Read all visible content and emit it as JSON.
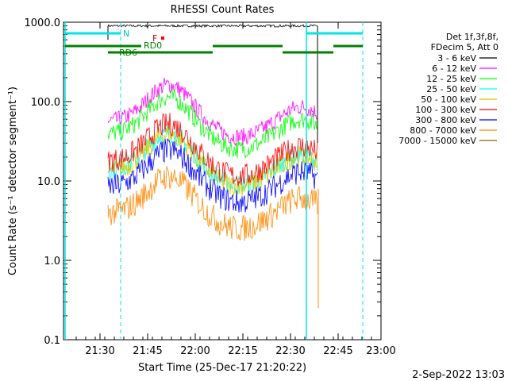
{
  "chart_data": {
    "type": "line",
    "title": "RHESSI Count Rates",
    "xlabel": "Start Time (25-Dec-17 21:20:22)",
    "ylabel": "Count Rate (s⁻¹ detector segment⁻¹)",
    "yscale": "log",
    "ylim": [
      0.1,
      1000
    ],
    "xlim_minutes": [
      21.3,
      23.0
    ],
    "x_ticks": [
      "21:30",
      "21:45",
      "22:00",
      "22:15",
      "22:30",
      "22:45",
      "23:00"
    ],
    "y_ticks": [
      "0.1",
      "1.0",
      "10.0",
      "100.0",
      "1000.0"
    ],
    "legend_header": [
      "Det 1f,3f,8f,",
      "FDecim 5, Att 0"
    ],
    "series": [
      {
        "name": "3 - 6 keV",
        "color": "#000000",
        "level": 900
      },
      {
        "name": "6 - 12 keV",
        "color": "#ff00ff",
        "level": 100
      },
      {
        "name": "12 - 25 keV",
        "color": "#00ff00",
        "level": 70
      },
      {
        "name": "25 - 50 keV",
        "color": "#00ffff",
        "level": 25
      },
      {
        "name": "50 - 100 keV",
        "color": "#cccc00",
        "level": 24
      },
      {
        "name": "100 - 300 keV",
        "color": "#ff0000",
        "level": 32
      },
      {
        "name": "300 - 800 keV",
        "color": "#0000ff",
        "level": 15
      },
      {
        "name": "800 - 7000 keV",
        "color": "#ff8800",
        "level": 7
      },
      {
        "name": "7000 - 15000 keV",
        "color": "#886600",
        "level": 0
      }
    ],
    "annotations": {
      "N": "N",
      "F": "F",
      "RD0": "RD0",
      "RD6": "RD6"
    },
    "footer_date": "2-Sep-2022 13:03"
  }
}
